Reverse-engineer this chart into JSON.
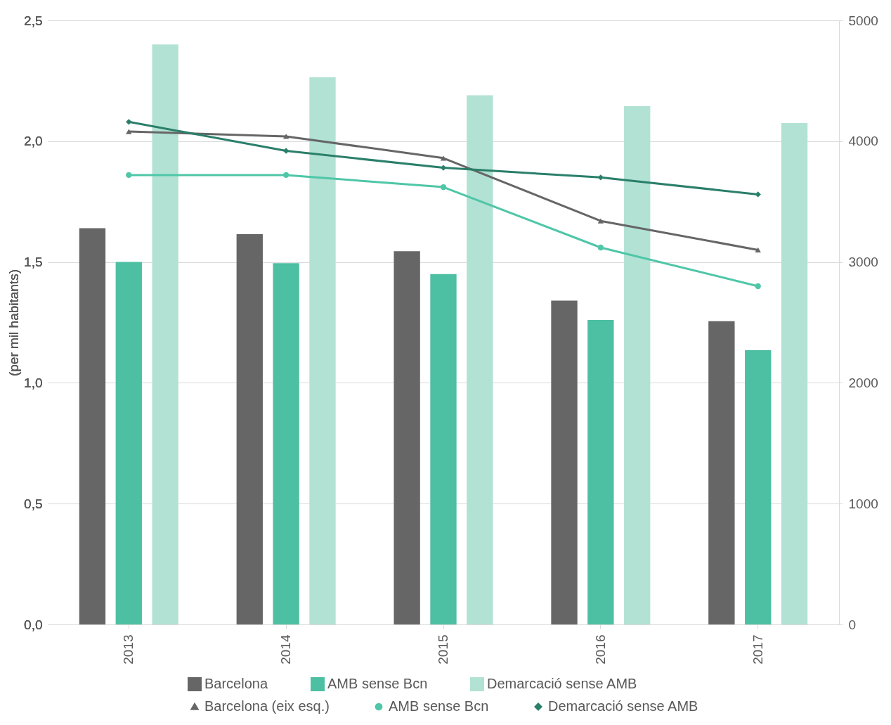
{
  "chart_data": {
    "type": "bar",
    "categories": [
      "2013",
      "2014",
      "2015",
      "2016",
      "2017"
    ],
    "ylabel": "(per mil habitants)",
    "ylim": [
      0,
      2.5
    ],
    "yticks": [
      {
        "value": 0,
        "label": "0,0"
      },
      {
        "value": 0.5,
        "label": "0,5"
      },
      {
        "value": 1,
        "label": "1,0"
      },
      {
        "value": 1.5,
        "label": "1,5"
      },
      {
        "value": 2,
        "label": "2,0"
      },
      {
        "value": 2.5,
        "label": "2,5"
      }
    ],
    "y2lim": [
      0,
      5000
    ],
    "y2ticks": [
      0,
      1000,
      2000,
      3000,
      4000,
      5000
    ],
    "grid": "y",
    "legend": "bottom",
    "series": [
      {
        "name": "Barcelona",
        "color": "#666666",
        "axis": "y2",
        "values": [
          3280,
          3230,
          3090,
          2680,
          2510
        ]
      },
      {
        "name": "AMB sense Bcn",
        "color": "#4dbfa3",
        "axis": "y2",
        "values": [
          3000,
          2990,
          2900,
          2520,
          2270
        ]
      },
      {
        "name": "Demarcació sense AMB",
        "color": "#b2e2d4",
        "axis": "y2",
        "values": [
          4800,
          4530,
          4380,
          4290,
          4150
        ]
      },
      {
        "name": "Barcelona (eix esq.)",
        "type": "line",
        "color": "#666666",
        "marker": "triangle",
        "values": [
          2.04,
          2.02,
          1.93,
          1.67,
          1.55
        ]
      },
      {
        "name": "AMB sense Bcn",
        "type": "line",
        "color": "#4fc6a8",
        "marker": "circle",
        "values": [
          1.86,
          1.86,
          1.81,
          1.56,
          1.4
        ]
      },
      {
        "name": "Demarcació sense AMB",
        "type": "line",
        "color": "#2a7f6a",
        "marker": "diamond",
        "values": [
          2.08,
          1.96,
          1.89,
          1.85,
          1.78
        ]
      }
    ]
  }
}
